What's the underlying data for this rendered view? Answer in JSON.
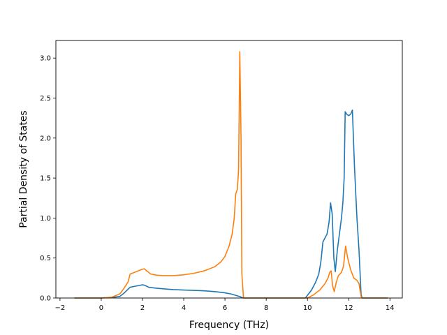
{
  "chart_data": {
    "type": "line",
    "title": "",
    "xlabel": "Frequency (THz)",
    "ylabel": "Partial Density of States",
    "xlim": [
      -2.2,
      14.6
    ],
    "ylim": [
      0.0,
      3.22
    ],
    "xticks": [
      -2,
      0,
      2,
      4,
      6,
      8,
      10,
      12,
      14
    ],
    "xtick_labels": [
      "−2",
      "0",
      "2",
      "4",
      "6",
      "8",
      "10",
      "12",
      "14"
    ],
    "yticks": [
      0.0,
      0.5,
      1.0,
      1.5,
      2.0,
      2.5,
      3.0
    ],
    "ytick_labels": [
      "0.0",
      "0.5",
      "1.0",
      "1.5",
      "2.0",
      "2.5",
      "3.0"
    ],
    "grid": false,
    "legend": "none",
    "series": [
      {
        "color": "#1f77b4",
        "points": [
          [
            -1.3,
            0.0
          ],
          [
            0.0,
            0.0
          ],
          [
            0.5,
            0.005
          ],
          [
            0.9,
            0.02
          ],
          [
            1.1,
            0.06
          ],
          [
            1.3,
            0.11
          ],
          [
            1.4,
            0.135
          ],
          [
            1.6,
            0.145
          ],
          [
            1.8,
            0.155
          ],
          [
            2.0,
            0.165
          ],
          [
            2.1,
            0.16
          ],
          [
            2.3,
            0.135
          ],
          [
            2.6,
            0.125
          ],
          [
            3.0,
            0.115
          ],
          [
            3.5,
            0.105
          ],
          [
            4.0,
            0.1
          ],
          [
            4.5,
            0.095
          ],
          [
            5.0,
            0.09
          ],
          [
            5.5,
            0.08
          ],
          [
            6.0,
            0.065
          ],
          [
            6.3,
            0.05
          ],
          [
            6.5,
            0.035
          ],
          [
            6.7,
            0.02
          ],
          [
            6.9,
            0.0
          ],
          [
            9.9,
            0.0
          ],
          [
            10.2,
            0.1
          ],
          [
            10.4,
            0.2
          ],
          [
            10.55,
            0.3
          ],
          [
            10.65,
            0.45
          ],
          [
            10.75,
            0.7
          ],
          [
            10.85,
            0.75
          ],
          [
            10.95,
            0.8
          ],
          [
            11.05,
            0.95
          ],
          [
            11.12,
            1.19
          ],
          [
            11.2,
            1.05
          ],
          [
            11.28,
            0.5
          ],
          [
            11.35,
            0.33
          ],
          [
            11.45,
            0.6
          ],
          [
            11.55,
            0.8
          ],
          [
            11.65,
            1.0
          ],
          [
            11.72,
            1.2
          ],
          [
            11.78,
            1.5
          ],
          [
            11.83,
            2.33
          ],
          [
            11.9,
            2.3
          ],
          [
            12.0,
            2.28
          ],
          [
            12.1,
            2.3
          ],
          [
            12.18,
            2.35
          ],
          [
            12.28,
            1.65
          ],
          [
            12.4,
            1.0
          ],
          [
            12.5,
            0.6
          ],
          [
            12.6,
            0.05
          ],
          [
            12.65,
            0.0
          ],
          [
            13.9,
            0.0
          ]
        ]
      },
      {
        "color": "#ff7f0e",
        "points": [
          [
            -1.3,
            0.0
          ],
          [
            0.0,
            0.0
          ],
          [
            0.5,
            0.01
          ],
          [
            0.9,
            0.05
          ],
          [
            1.1,
            0.12
          ],
          [
            1.3,
            0.2
          ],
          [
            1.4,
            0.3
          ],
          [
            1.6,
            0.32
          ],
          [
            1.8,
            0.34
          ],
          [
            2.0,
            0.36
          ],
          [
            2.1,
            0.365
          ],
          [
            2.2,
            0.34
          ],
          [
            2.4,
            0.3
          ],
          [
            2.7,
            0.285
          ],
          [
            3.0,
            0.28
          ],
          [
            3.5,
            0.28
          ],
          [
            4.0,
            0.29
          ],
          [
            4.5,
            0.31
          ],
          [
            5.0,
            0.34
          ],
          [
            5.5,
            0.39
          ],
          [
            5.8,
            0.45
          ],
          [
            6.0,
            0.52
          ],
          [
            6.2,
            0.65
          ],
          [
            6.35,
            0.8
          ],
          [
            6.45,
            1.0
          ],
          [
            6.52,
            1.3
          ],
          [
            6.6,
            1.36
          ],
          [
            6.66,
            1.6
          ],
          [
            6.72,
            3.08
          ],
          [
            6.78,
            2.0
          ],
          [
            6.82,
            0.3
          ],
          [
            6.9,
            0.0
          ],
          [
            10.0,
            0.0
          ],
          [
            10.3,
            0.04
          ],
          [
            10.6,
            0.1
          ],
          [
            10.85,
            0.18
          ],
          [
            11.0,
            0.25
          ],
          [
            11.08,
            0.32
          ],
          [
            11.15,
            0.34
          ],
          [
            11.22,
            0.15
          ],
          [
            11.3,
            0.08
          ],
          [
            11.4,
            0.2
          ],
          [
            11.5,
            0.28
          ],
          [
            11.65,
            0.32
          ],
          [
            11.75,
            0.4
          ],
          [
            11.85,
            0.65
          ],
          [
            11.95,
            0.5
          ],
          [
            12.1,
            0.35
          ],
          [
            12.25,
            0.25
          ],
          [
            12.4,
            0.22
          ],
          [
            12.5,
            0.18
          ],
          [
            12.6,
            0.02
          ],
          [
            12.65,
            0.0
          ],
          [
            13.9,
            0.0
          ]
        ]
      }
    ]
  }
}
